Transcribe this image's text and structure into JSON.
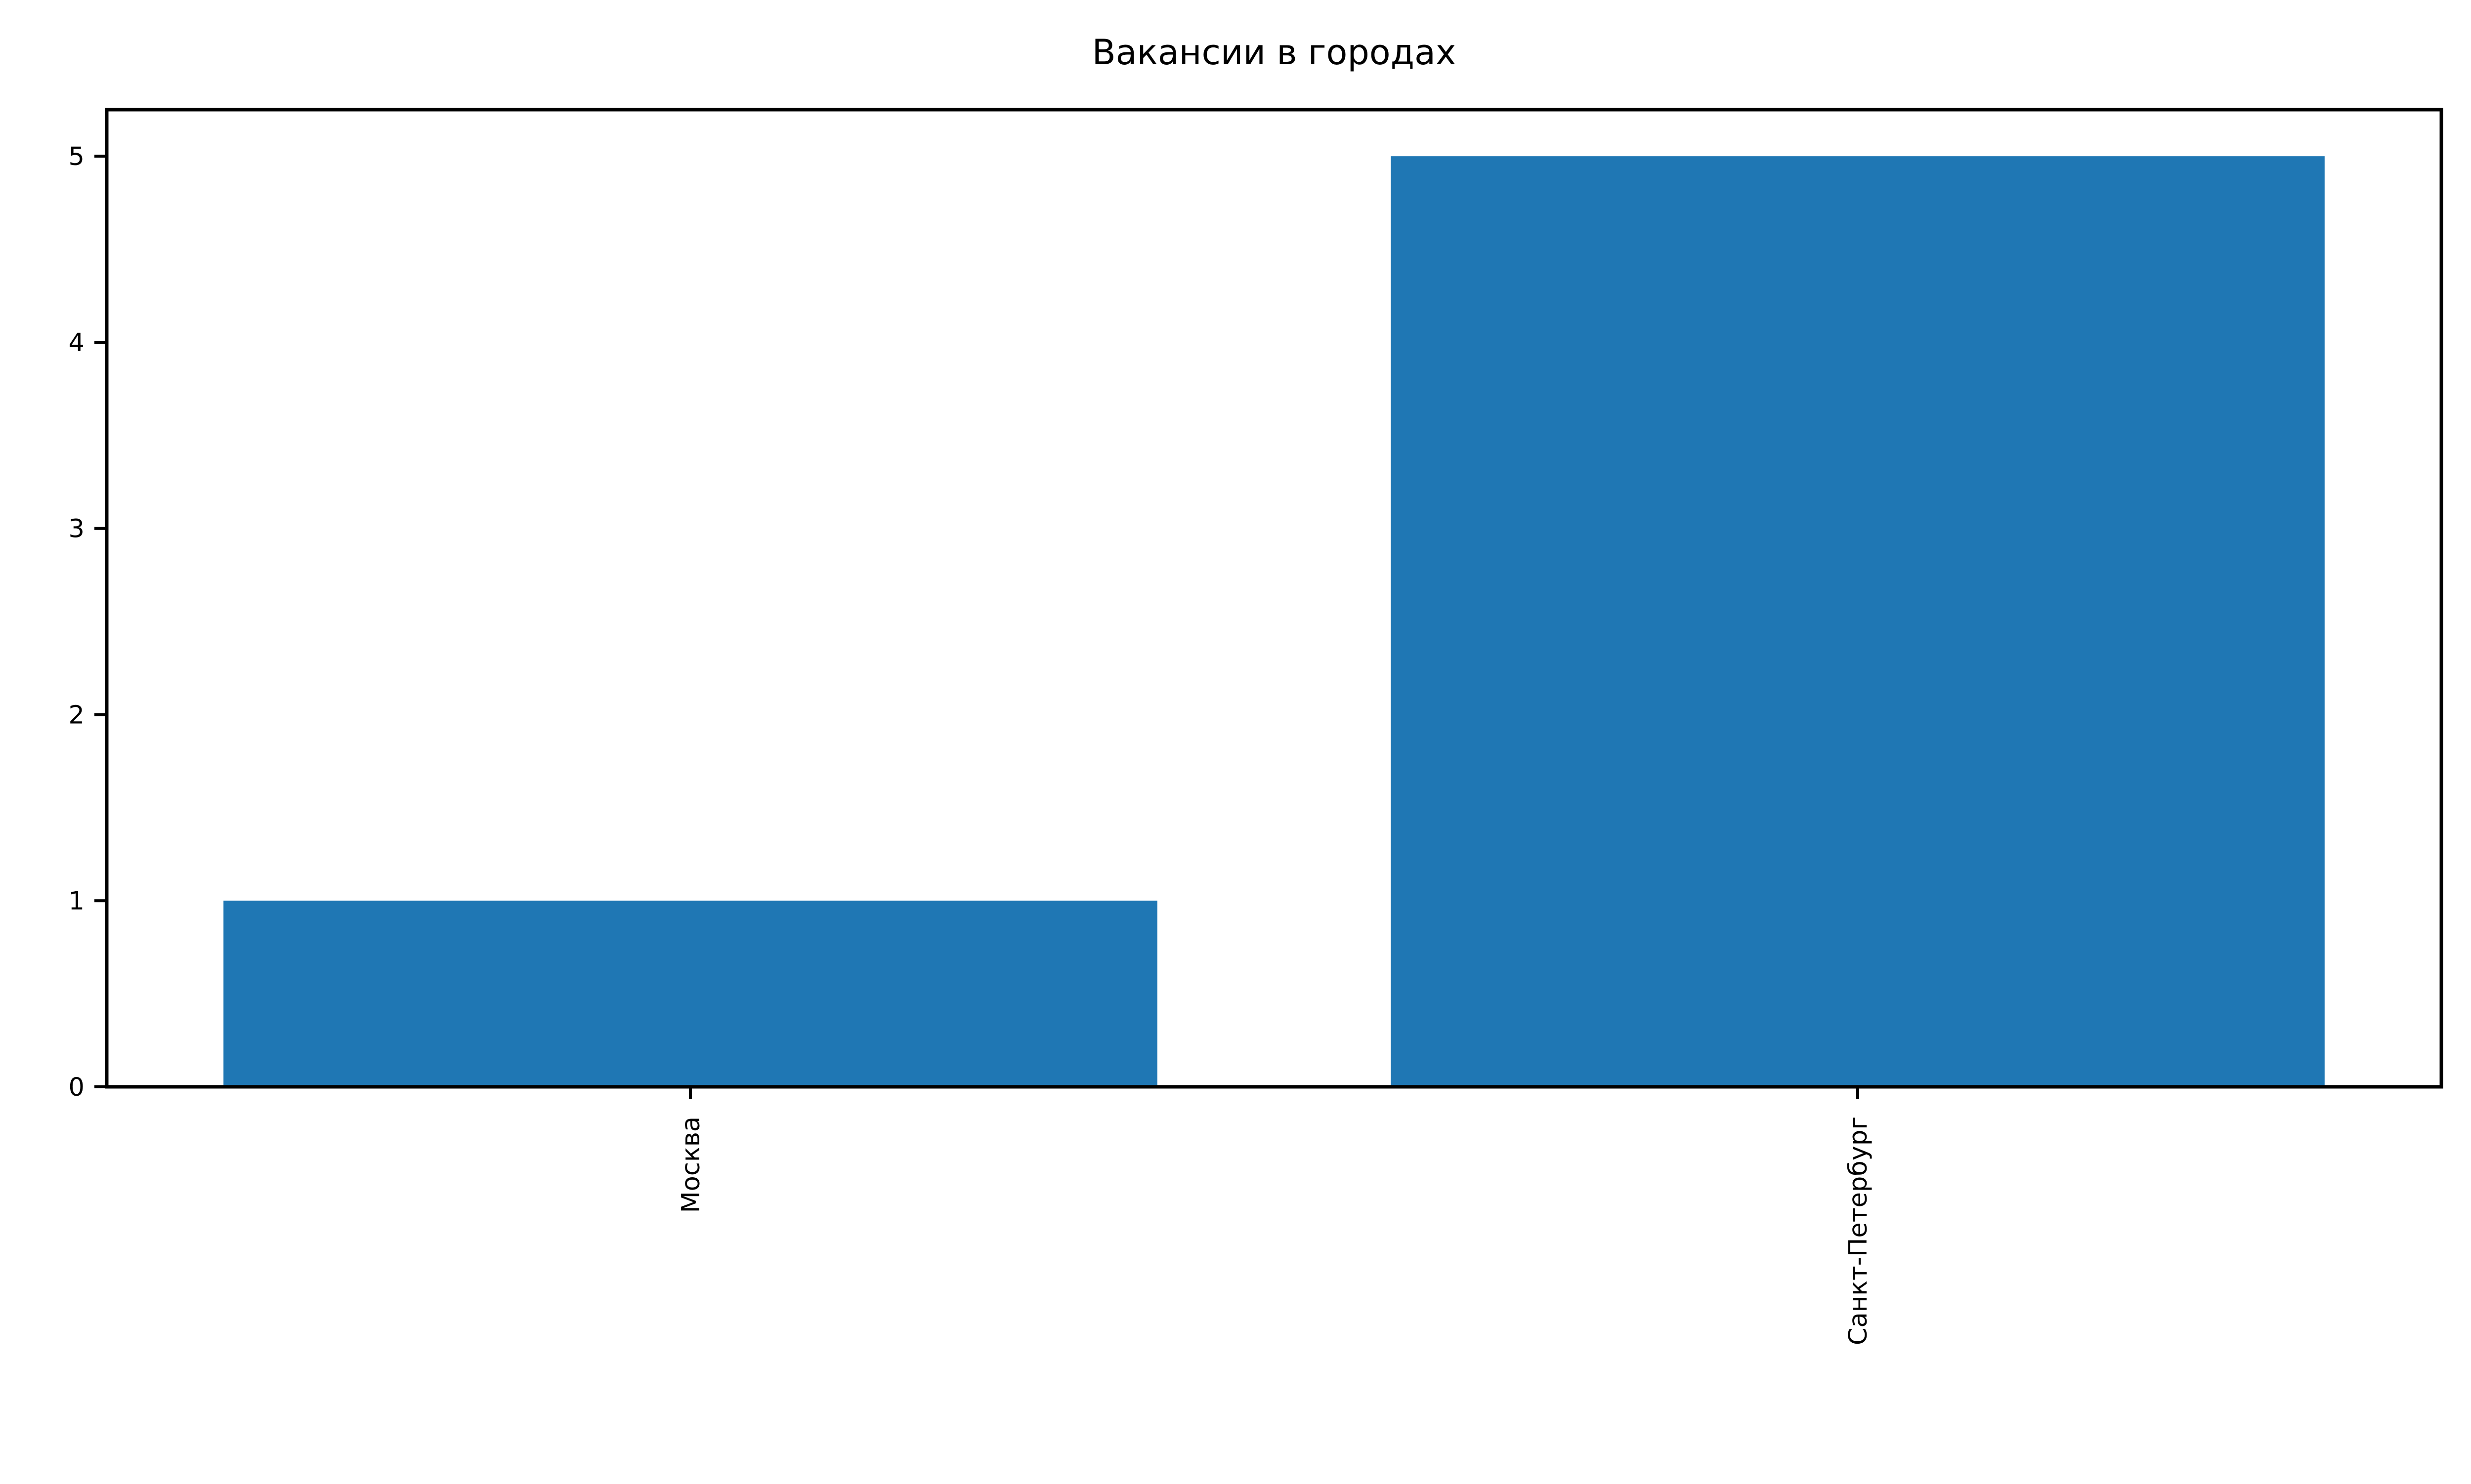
{
  "chart_data": {
    "type": "bar",
    "title": "Вакансии в городах",
    "xlabel": "",
    "ylabel": "",
    "categories": [
      "Москва",
      "Санкт-Петербург"
    ],
    "values": [
      1,
      5
    ],
    "ylim": [
      0,
      5.25
    ],
    "yticks": [
      0,
      1,
      2,
      3,
      4,
      5
    ],
    "grid": false,
    "legend": "none",
    "bar_color": "#1f77b4",
    "xtick_rotation": "vertical"
  }
}
